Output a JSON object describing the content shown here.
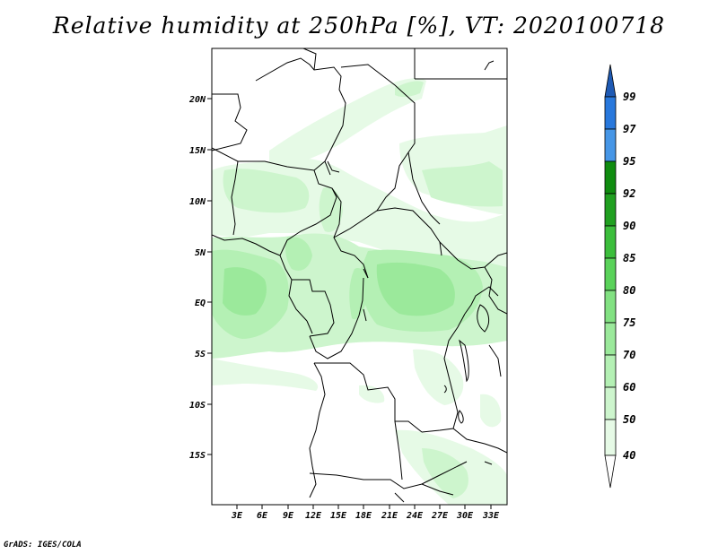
{
  "title": "Relative humidity at 250hPa [%], VT: 2020100718",
  "credit": "GrADS: IGES/COLA",
  "map": {
    "lat_labels": [
      "20N",
      "15N",
      "10N",
      "5N",
      "EQ",
      "5S",
      "10S",
      "15S"
    ],
    "lon_labels": [
      "3E",
      "6E",
      "9E",
      "12E",
      "15E",
      "18E",
      "21E",
      "24E",
      "27E",
      "30E",
      "33E"
    ]
  },
  "colorbar": {
    "levels": [
      "99",
      "97",
      "95",
      "92",
      "90",
      "85",
      "80",
      "75",
      "70",
      "60",
      "50",
      "40"
    ],
    "colors": {
      "40_50": "#e6fae6",
      "50_60": "#cdf5cd",
      "60_70": "#b4f0b4",
      "70_75": "#9be99b",
      "75_80": "#82e182",
      "80_85": "#5ad25a",
      "85_90": "#3cbe3c",
      "90_92": "#20a020",
      "92_95": "#108c10",
      "95_97": "#4696e6",
      "97_99": "#2878dc",
      "99_100": "#1e5ab4"
    }
  }
}
